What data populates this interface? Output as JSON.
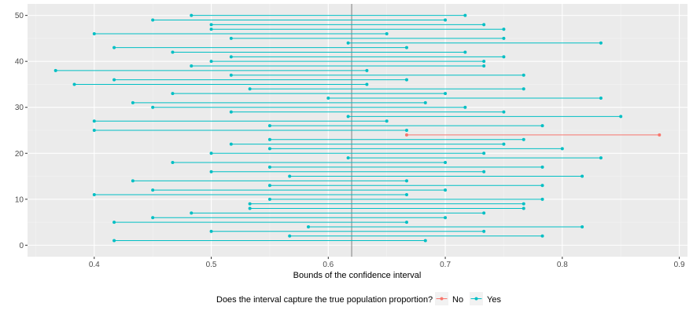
{
  "chart_data": {
    "type": "interval",
    "title": "",
    "xlabel": "Bounds of the confidence interval",
    "ylabel": "",
    "xlim": [
      0.343,
      0.907
    ],
    "ylim": [
      -2.5,
      52.5
    ],
    "x_ticks": [
      0.4,
      0.5,
      0.6,
      0.7,
      0.8,
      0.9
    ],
    "x_tick_labels": [
      "0.4",
      "0.5",
      "0.6",
      "0.7",
      "0.8",
      "0.9"
    ],
    "y_ticks": [
      0,
      10,
      20,
      30,
      40,
      50
    ],
    "y_tick_labels": [
      "0",
      "10",
      "20",
      "30",
      "40",
      "50"
    ],
    "reference_line_x": 0.62,
    "grid": true,
    "legend": {
      "title": "Does the interval capture the true population proportion?",
      "position": "bottom",
      "entries": [
        {
          "label": "No",
          "color": "#F8766D"
        },
        {
          "label": "Yes",
          "color": "#00BFC4"
        }
      ]
    },
    "intervals": [
      {
        "y": 1,
        "low": 0.417,
        "high": 0.683,
        "captures": "Yes"
      },
      {
        "y": 2,
        "low": 0.567,
        "high": 0.783,
        "captures": "Yes"
      },
      {
        "y": 3,
        "low": 0.5,
        "high": 0.733,
        "captures": "Yes"
      },
      {
        "y": 4,
        "low": 0.583,
        "high": 0.817,
        "captures": "Yes"
      },
      {
        "y": 5,
        "low": 0.417,
        "high": 0.667,
        "captures": "Yes"
      },
      {
        "y": 6,
        "low": 0.45,
        "high": 0.7,
        "captures": "Yes"
      },
      {
        "y": 7,
        "low": 0.483,
        "high": 0.733,
        "captures": "Yes"
      },
      {
        "y": 8,
        "low": 0.533,
        "high": 0.767,
        "captures": "Yes"
      },
      {
        "y": 9,
        "low": 0.533,
        "high": 0.767,
        "captures": "Yes"
      },
      {
        "y": 10,
        "low": 0.55,
        "high": 0.783,
        "captures": "Yes"
      },
      {
        "y": 11,
        "low": 0.4,
        "high": 0.667,
        "captures": "Yes"
      },
      {
        "y": 12,
        "low": 0.45,
        "high": 0.7,
        "captures": "Yes"
      },
      {
        "y": 13,
        "low": 0.55,
        "high": 0.783,
        "captures": "Yes"
      },
      {
        "y": 14,
        "low": 0.433,
        "high": 0.667,
        "captures": "Yes"
      },
      {
        "y": 15,
        "low": 0.567,
        "high": 0.817,
        "captures": "Yes"
      },
      {
        "y": 16,
        "low": 0.5,
        "high": 0.733,
        "captures": "Yes"
      },
      {
        "y": 17,
        "low": 0.55,
        "high": 0.783,
        "captures": "Yes"
      },
      {
        "y": 18,
        "low": 0.467,
        "high": 0.7,
        "captures": "Yes"
      },
      {
        "y": 19,
        "low": 0.617,
        "high": 0.833,
        "captures": "Yes"
      },
      {
        "y": 20,
        "low": 0.5,
        "high": 0.733,
        "captures": "Yes"
      },
      {
        "y": 21,
        "low": 0.55,
        "high": 0.8,
        "captures": "Yes"
      },
      {
        "y": 22,
        "low": 0.517,
        "high": 0.75,
        "captures": "Yes"
      },
      {
        "y": 23,
        "low": 0.55,
        "high": 0.767,
        "captures": "Yes"
      },
      {
        "y": 24,
        "low": 0.667,
        "high": 0.883,
        "captures": "No"
      },
      {
        "y": 25,
        "low": 0.4,
        "high": 0.667,
        "captures": "Yes"
      },
      {
        "y": 26,
        "low": 0.55,
        "high": 0.783,
        "captures": "Yes"
      },
      {
        "y": 27,
        "low": 0.4,
        "high": 0.65,
        "captures": "Yes"
      },
      {
        "y": 28,
        "low": 0.617,
        "high": 0.85,
        "captures": "Yes"
      },
      {
        "y": 29,
        "low": 0.517,
        "high": 0.75,
        "captures": "Yes"
      },
      {
        "y": 30,
        "low": 0.45,
        "high": 0.717,
        "captures": "Yes"
      },
      {
        "y": 31,
        "low": 0.433,
        "high": 0.683,
        "captures": "Yes"
      },
      {
        "y": 32,
        "low": 0.6,
        "high": 0.833,
        "captures": "Yes"
      },
      {
        "y": 33,
        "low": 0.467,
        "high": 0.7,
        "captures": "Yes"
      },
      {
        "y": 34,
        "low": 0.533,
        "high": 0.767,
        "captures": "Yes"
      },
      {
        "y": 35,
        "low": 0.383,
        "high": 0.633,
        "captures": "Yes"
      },
      {
        "y": 36,
        "low": 0.417,
        "high": 0.667,
        "captures": "Yes"
      },
      {
        "y": 37,
        "low": 0.517,
        "high": 0.767,
        "captures": "Yes"
      },
      {
        "y": 38,
        "low": 0.367,
        "high": 0.633,
        "captures": "Yes"
      },
      {
        "y": 39,
        "low": 0.483,
        "high": 0.733,
        "captures": "Yes"
      },
      {
        "y": 40,
        "low": 0.5,
        "high": 0.733,
        "captures": "Yes"
      },
      {
        "y": 41,
        "low": 0.517,
        "high": 0.75,
        "captures": "Yes"
      },
      {
        "y": 42,
        "low": 0.467,
        "high": 0.717,
        "captures": "Yes"
      },
      {
        "y": 43,
        "low": 0.417,
        "high": 0.667,
        "captures": "Yes"
      },
      {
        "y": 44,
        "low": 0.617,
        "high": 0.833,
        "captures": "Yes"
      },
      {
        "y": 45,
        "low": 0.517,
        "high": 0.75,
        "captures": "Yes"
      },
      {
        "y": 46,
        "low": 0.4,
        "high": 0.65,
        "captures": "Yes"
      },
      {
        "y": 47,
        "low": 0.5,
        "high": 0.75,
        "captures": "Yes"
      },
      {
        "y": 48,
        "low": 0.5,
        "high": 0.733,
        "captures": "Yes"
      },
      {
        "y": 49,
        "low": 0.45,
        "high": 0.7,
        "captures": "Yes"
      },
      {
        "y": 50,
        "low": 0.483,
        "high": 0.717,
        "captures": "Yes"
      }
    ]
  },
  "colors": {
    "panel_background": "#EBEBEB",
    "grid_major": "#FFFFFF",
    "grid_minor": "#F4F4F4",
    "reference_line": "#7F7F7F",
    "no": "#F8766D",
    "yes": "#00BFC4"
  }
}
